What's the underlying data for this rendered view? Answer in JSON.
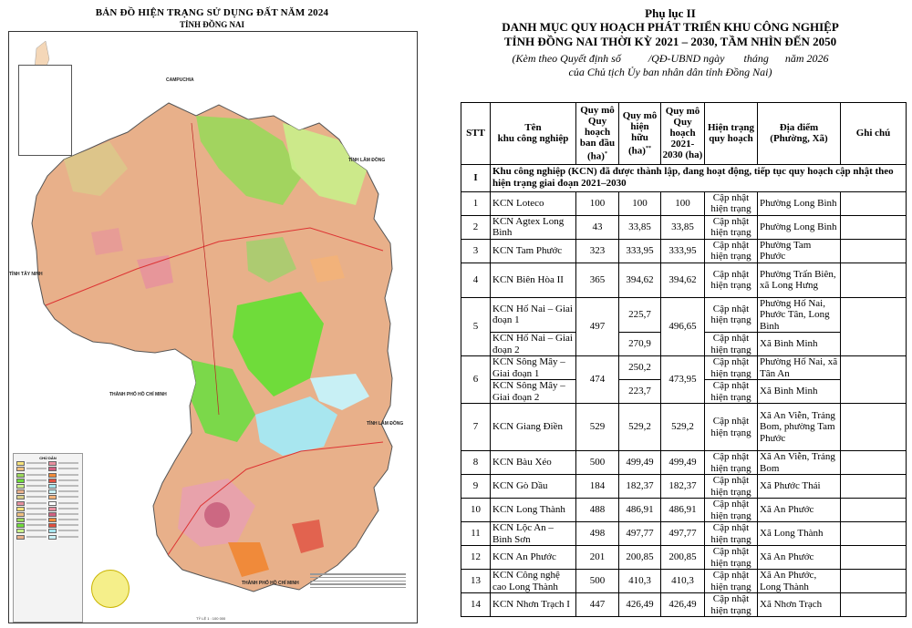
{
  "map": {
    "title": "BẢN ĐỒ HIỆN TRẠNG SỬ DỤNG ĐẤT NĂM 2024",
    "subtitle": "TỈNH ĐỒNG NAI",
    "labels": {
      "campuchia": "CAMPUCHIA",
      "lam_dong_top": "TỈNH LÂM ĐỒNG",
      "tay_ninh": "TỈNH TÂY NINH",
      "hcm_mid": "THÀNH PHỐ HỒ CHÍ MINH",
      "lam_dong_mid": "TỈNH LÂM ĐỒNG",
      "hcm_bottom": "THÀNH PHỐ HỒ CHÍ MINH"
    },
    "legend_title": "CHÚ DẪN",
    "scale": "TỶ LỆ 1 : 100 000"
  },
  "doc": {
    "appendix": "Phụ lục II",
    "title_line1": "DANH MỤC QUY HOẠCH PHÁT TRIỂN KHU CÔNG NGHIỆP",
    "title_line2": "TỈNH ĐỒNG NAI THỜI KỲ 2021 – 2030, TẦM NHÌN ĐẾN 2050",
    "note_line1": "(Kèm theo Quyết định số          /QĐ-UBND ngày       tháng      năm 2026",
    "note_line2": "của Chủ tịch Ủy ban nhân dân tỉnh Đồng Nai)"
  },
  "table": {
    "headers": {
      "stt": "STT",
      "name_1": "Tên",
      "name_2": "khu công nghiệp",
      "qm_dau_1": "Quy mô",
      "qm_dau_2": "Quy",
      "qm_dau_3": "hoạch",
      "qm_dau_4": "ban đầu",
      "qm_dau_5": "(ha)",
      "qm_dau_sup": "*",
      "qm_hh_1": "Quy mô",
      "qm_hh_2": "hiện",
      "qm_hh_3": "hữu",
      "qm_hh_4": "(ha)",
      "qm_hh_sup": "**",
      "qm_qh_1": "Quy mô",
      "qm_qh_2": "Quy",
      "qm_qh_3": "hoạch",
      "qm_qh_4": "2021-",
      "qm_qh_5": "2030  (ha)",
      "ht_1": "Hiện trạng",
      "ht_2": "quy hoạch",
      "dd_1": "Địa điểm",
      "dd_2": "(Phường, Xã)",
      "note": "Ghi chú"
    },
    "section": {
      "stt": "I",
      "text": "Khu công nghiệp (KCN) đã được thành lập, đang hoạt động, tiếp tục quy hoạch cập nhật theo hiện trạng giai đoạn 2021–2030"
    },
    "status": "Cập nhật hiện trạng",
    "rows": [
      {
        "stt": "1",
        "name": "KCN Loteco",
        "dau": "100",
        "hh": "100",
        "qh": "100",
        "dd": "Phường Long Bình"
      },
      {
        "stt": "2",
        "name": "KCN Agtex Long Bình",
        "dau": "43",
        "hh": "33,85",
        "qh": "33,85",
        "dd": "Phường Long Bình"
      },
      {
        "stt": "3",
        "name": "KCN Tam Phước",
        "dau": "323",
        "hh": "333,95",
        "qh": "333,95",
        "dd": "Phường Tam Phước"
      },
      {
        "stt": "4",
        "name": "KCN Biên Hòa II",
        "dau": "365",
        "hh": "394,62",
        "qh": "394,62",
        "dd": "Phường Trấn Biên, xã Long Hưng"
      },
      {
        "stt": "5",
        "name": "KCN Hố Nai – Giai đoạn 1",
        "dau": "497",
        "hh": "225,7",
        "qh": "496,65",
        "dd": "Phường Hố Nai, Phước Tân, Long Bình"
      },
      {
        "stt": "",
        "name": "KCN Hố Nai – Giai đoạn 2",
        "dau": "",
        "hh": "270,9",
        "qh": "",
        "dd": "Xã Bình Minh"
      },
      {
        "stt": "6",
        "name": "KCN Sông Mây – Giai đoạn 1",
        "dau": "474",
        "hh": "250,2",
        "qh": "473,95",
        "dd": "Phường Hố Nai, xã Tân An"
      },
      {
        "stt": "",
        "name": "KCN Sông Mây – Giai đoạn 2",
        "dau": "",
        "hh": "223,7",
        "qh": "",
        "dd": "Xã Bình Minh"
      },
      {
        "stt": "7",
        "name": "KCN Giang Điền",
        "dau": "529",
        "hh": "529,2",
        "qh": "529,2",
        "dd": "Xã An Viễn, Trảng Bom, phường Tam Phước"
      },
      {
        "stt": "8",
        "name": "KCN Bàu Xéo",
        "dau": "500",
        "hh": "499,49",
        "qh": "499,49",
        "dd": "Xã An Viễn, Trảng Bom"
      },
      {
        "stt": "9",
        "name": "KCN Gò Dầu",
        "dau": "184",
        "hh": "182,37",
        "qh": "182,37",
        "dd": "Xã Phước Thái"
      },
      {
        "stt": "10",
        "name": "KCN Long Thành",
        "dau": "488",
        "hh": "486,91",
        "qh": "486,91",
        "dd": "Xã An Phước"
      },
      {
        "stt": "11",
        "name": "KCN Lộc An – Bình Sơn",
        "dau": "498",
        "hh": "497,77",
        "qh": "497,77",
        "dd": "Xã Long Thành"
      },
      {
        "stt": "12",
        "name": "KCN An Phước",
        "dau": "201",
        "hh": "200,85",
        "qh": "200,85",
        "dd": "Xã An Phước"
      },
      {
        "stt": "13",
        "name": "KCN Công nghệ cao Long Thành",
        "dau": "500",
        "hh": "410,3",
        "qh": "410,3",
        "dd": "Xã An Phước, Long Thành"
      },
      {
        "stt": "14",
        "name": "KCN Nhơn Trạch I",
        "dau": "447",
        "hh": "426,49",
        "qh": "426,49",
        "dd": "Xã Nhơn Trạch"
      }
    ]
  }
}
